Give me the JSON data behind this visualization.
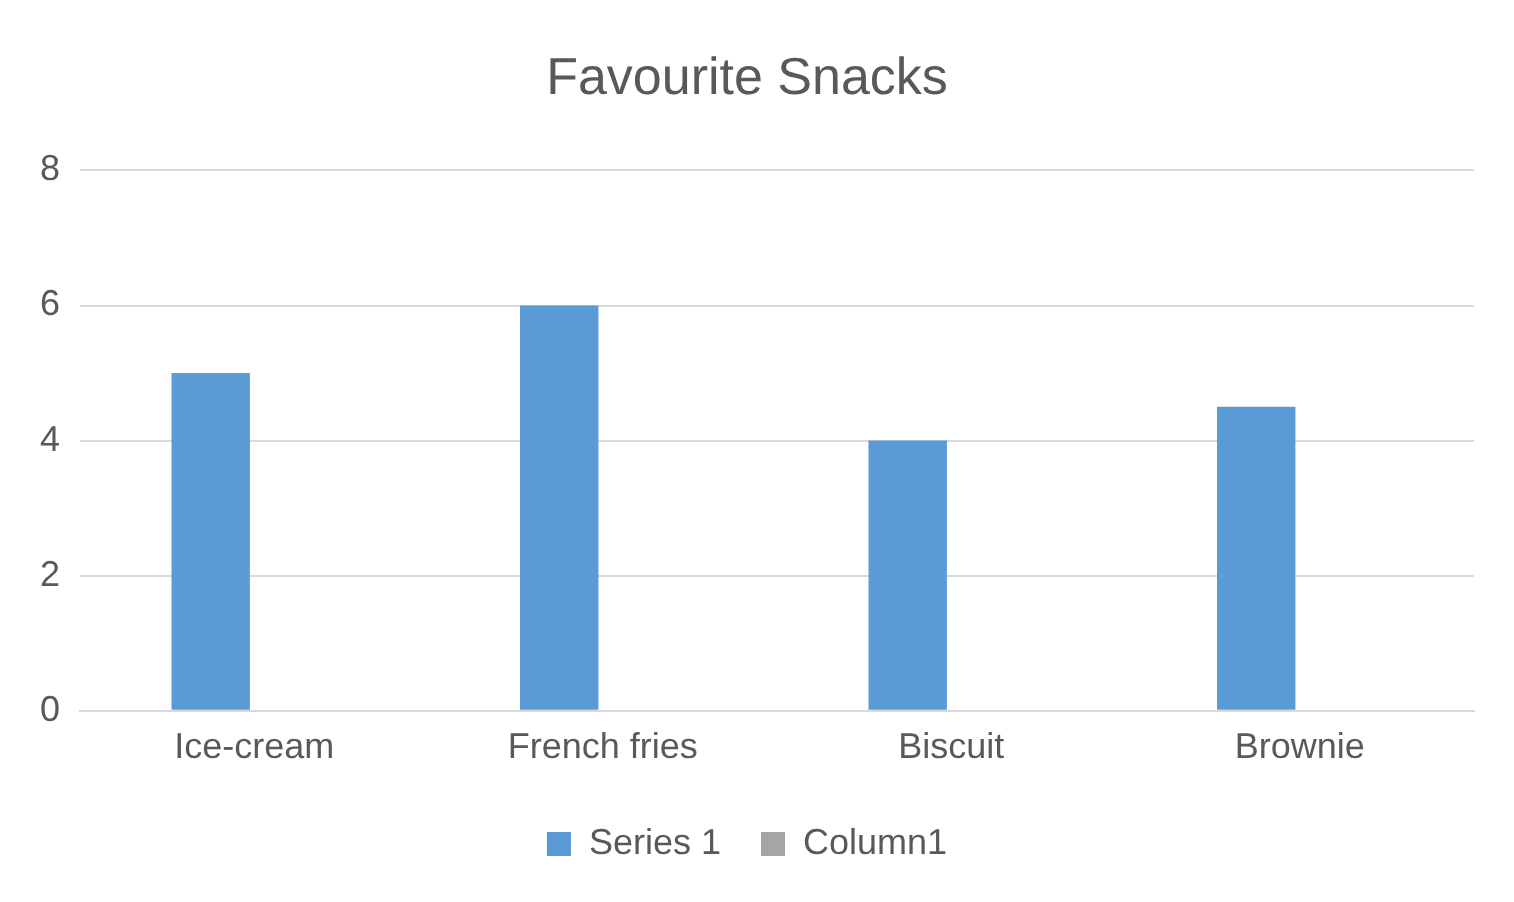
{
  "chart_data": {
    "type": "bar",
    "title": "Favourite Snacks",
    "categories": [
      "Ice-cream",
      "French fries",
      "Biscuit",
      "Brownie"
    ],
    "series": [
      {
        "name": "Series 1",
        "color": "#5b9bd5",
        "values": [
          5,
          6,
          4,
          4.5
        ]
      },
      {
        "name": "Column1",
        "color": "#a5a5a5",
        "values": [
          null,
          null,
          null,
          null
        ]
      }
    ],
    "ylim": [
      0,
      8
    ],
    "yticks": [
      0,
      2,
      4,
      6,
      8
    ],
    "grid": "y",
    "legend": "bottom"
  }
}
